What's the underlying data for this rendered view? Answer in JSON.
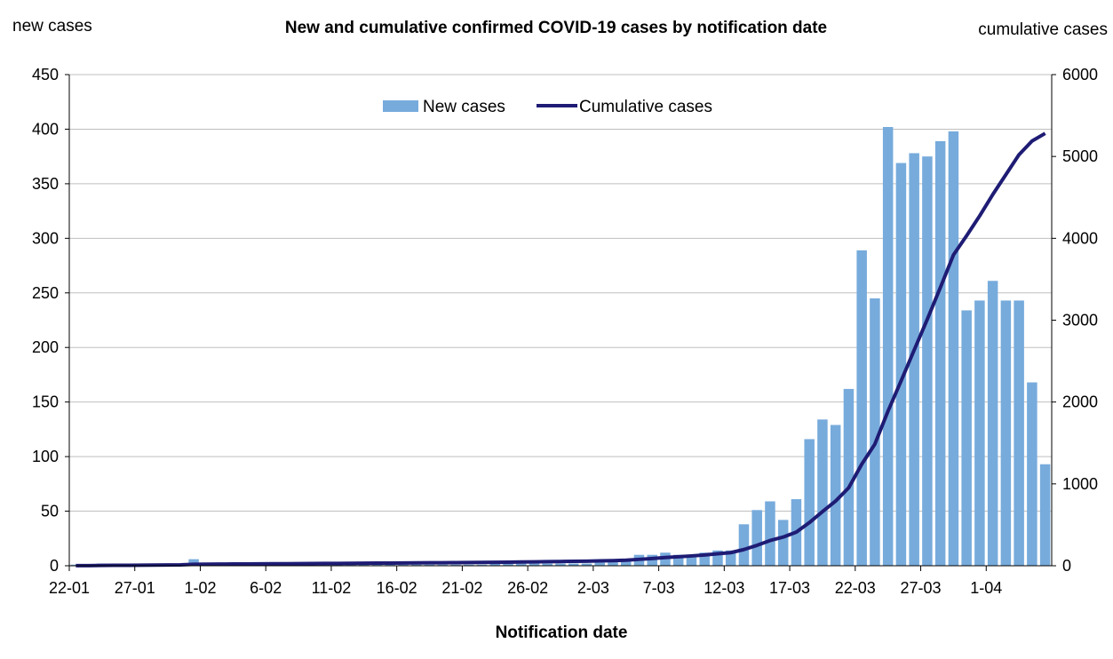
{
  "chart_data": {
    "type": "bar",
    "title": "New and cumulative confirmed COVID-19 cases by notification date",
    "xlabel": "Notification date",
    "ylabel_left": "new cases",
    "ylabel_right": "cumulative cases",
    "ylim_left": [
      0,
      450
    ],
    "yticks_left": [
      0,
      50,
      100,
      150,
      200,
      250,
      300,
      350,
      400,
      450
    ],
    "ylim_right": [
      0,
      6000
    ],
    "yticks_right": [
      0,
      1000,
      2000,
      3000,
      4000,
      5000,
      6000
    ],
    "grid": true,
    "legend_position": "top-center",
    "colors": {
      "bars": "#77ABDC",
      "line": "#1E1C74",
      "grid": "#BFBFBF",
      "axis": "#000000"
    },
    "x_tick_labels": [
      "22-01",
      "27-01",
      "1-02",
      "6-02",
      "11-02",
      "16-02",
      "21-02",
      "26-02",
      "2-03",
      "7-03",
      "12-03",
      "17-03",
      "22-03",
      "27-03",
      "1-04"
    ],
    "x_tick_every": 5,
    "categories_start": "22-01",
    "categories_end": "3-04",
    "series": [
      {
        "name": "New cases",
        "type": "bar",
        "axis": "left",
        "values": [
          1,
          1,
          2,
          1,
          1,
          1,
          1,
          1,
          2,
          6,
          2,
          1,
          1,
          1,
          1,
          1,
          1,
          1,
          1,
          1,
          1,
          1,
          1,
          1,
          1,
          1,
          1,
          1,
          1,
          1,
          1,
          1,
          2,
          2,
          2,
          2,
          2,
          2,
          2,
          2,
          3,
          4,
          5,
          10,
          10,
          12,
          10,
          10,
          12,
          14,
          14,
          38,
          51,
          59,
          42,
          61,
          116,
          134,
          129,
          162,
          289,
          245,
          402,
          369,
          378,
          375,
          389,
          398,
          234,
          243,
          261,
          243,
          243,
          168,
          93
        ]
      },
      {
        "name": "Cumulative cases",
        "type": "line",
        "axis": "right",
        "values": [
          1,
          2,
          4,
          5,
          6,
          7,
          8,
          9,
          11,
          17,
          19,
          20,
          21,
          22,
          23,
          24,
          25,
          26,
          27,
          28,
          29,
          30,
          31,
          32,
          33,
          34,
          35,
          36,
          37,
          38,
          39,
          40,
          42,
          44,
          46,
          48,
          50,
          52,
          54,
          56,
          59,
          63,
          68,
          78,
          88,
          100,
          110,
          120,
          132,
          146,
          160,
          198,
          249,
          308,
          350,
          411,
          527,
          661,
          790,
          952,
          1241,
          1486,
          1888,
          2257,
          2635,
          3010,
          3399,
          3797,
          4031,
          4274,
          4535,
          4778,
          5021,
          5189,
          5282
        ]
      }
    ]
  }
}
